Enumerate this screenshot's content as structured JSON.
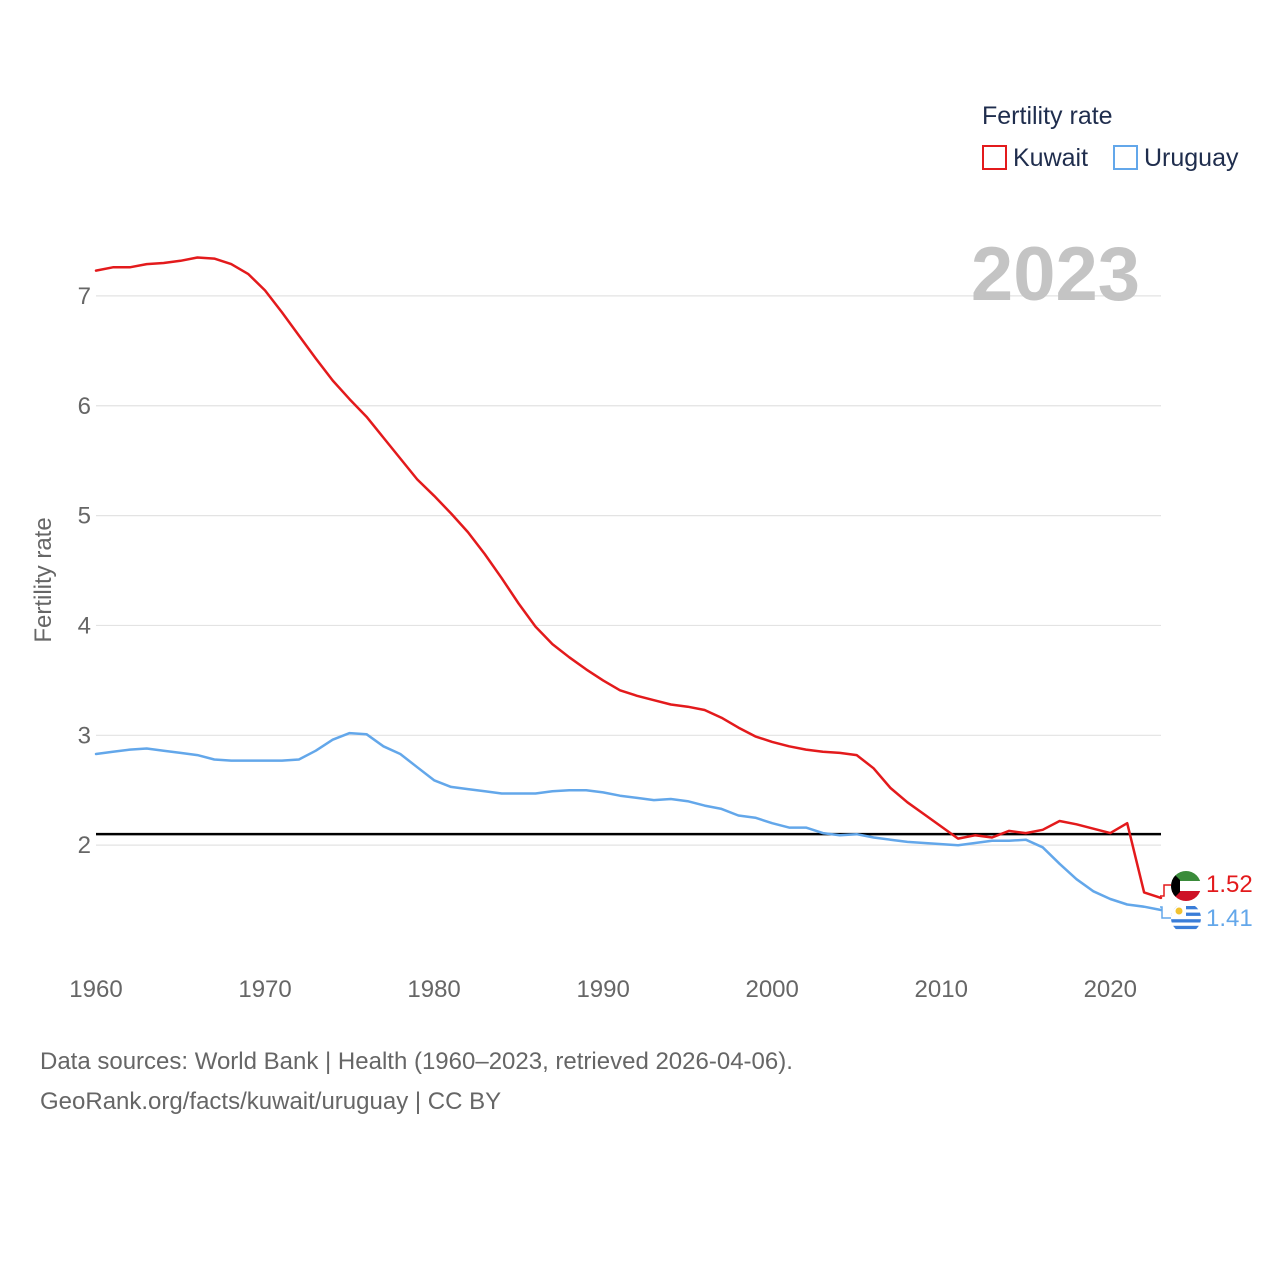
{
  "chart_data": {
    "type": "line",
    "title": "",
    "legend_title": "Fertility rate",
    "ylabel": "Fertility rate",
    "xlabel": "",
    "xlim": [
      1960,
      2023
    ],
    "ylim": [
      1.0,
      7.6
    ],
    "xticks": [
      1960,
      1970,
      1980,
      1990,
      2000,
      2010,
      2020
    ],
    "yticks": [
      2,
      3,
      4,
      5,
      6,
      7
    ],
    "grid": true,
    "legend_position": "top-right",
    "year_label": "2023",
    "reference_line": {
      "y": 2.1,
      "color": "#000000"
    },
    "series": [
      {
        "name": "Kuwait",
        "color": "#e31a1c",
        "end_label": "1.52",
        "x": [
          1960,
          1961,
          1962,
          1963,
          1964,
          1965,
          1966,
          1967,
          1968,
          1969,
          1970,
          1971,
          1972,
          1973,
          1974,
          1975,
          1976,
          1977,
          1978,
          1979,
          1980,
          1981,
          1982,
          1983,
          1984,
          1985,
          1986,
          1987,
          1988,
          1989,
          1990,
          1991,
          1992,
          1993,
          1994,
          1995,
          1996,
          1997,
          1998,
          1999,
          2000,
          2001,
          2002,
          2003,
          2004,
          2005,
          2006,
          2007,
          2008,
          2009,
          2010,
          2011,
          2012,
          2013,
          2014,
          2015,
          2016,
          2017,
          2018,
          2019,
          2020,
          2021,
          2022,
          2023
        ],
        "values": [
          7.23,
          7.26,
          7.26,
          7.29,
          7.3,
          7.32,
          7.35,
          7.34,
          7.29,
          7.2,
          7.05,
          6.85,
          6.64,
          6.43,
          6.23,
          6.06,
          5.9,
          5.71,
          5.52,
          5.33,
          5.18,
          5.02,
          4.85,
          4.65,
          4.43,
          4.2,
          3.99,
          3.83,
          3.71,
          3.6,
          3.5,
          3.41,
          3.36,
          3.32,
          3.28,
          3.26,
          3.23,
          3.16,
          3.07,
          2.99,
          2.94,
          2.9,
          2.87,
          2.85,
          2.84,
          2.82,
          2.7,
          2.52,
          2.39,
          2.28,
          2.17,
          2.06,
          2.09,
          2.07,
          2.13,
          2.11,
          2.14,
          2.22,
          2.19,
          2.15,
          2.11,
          2.2,
          1.57,
          1.52
        ]
      },
      {
        "name": "Uruguay",
        "color": "#63a7ea",
        "end_label": "1.41",
        "x": [
          1960,
          1961,
          1962,
          1963,
          1964,
          1965,
          1966,
          1967,
          1968,
          1969,
          1970,
          1971,
          1972,
          1973,
          1974,
          1975,
          1976,
          1977,
          1978,
          1979,
          1980,
          1981,
          1982,
          1983,
          1984,
          1985,
          1986,
          1987,
          1988,
          1989,
          1990,
          1991,
          1992,
          1993,
          1994,
          1995,
          1996,
          1997,
          1998,
          1999,
          2000,
          2001,
          2002,
          2003,
          2004,
          2005,
          2006,
          2007,
          2008,
          2009,
          2010,
          2011,
          2012,
          2013,
          2014,
          2015,
          2016,
          2017,
          2018,
          2019,
          2020,
          2021,
          2022,
          2023
        ],
        "values": [
          2.83,
          2.85,
          2.87,
          2.88,
          2.86,
          2.84,
          2.82,
          2.78,
          2.77,
          2.77,
          2.77,
          2.77,
          2.78,
          2.86,
          2.96,
          3.02,
          3.01,
          2.9,
          2.83,
          2.71,
          2.59,
          2.53,
          2.51,
          2.49,
          2.47,
          2.47,
          2.47,
          2.49,
          2.5,
          2.5,
          2.48,
          2.45,
          2.43,
          2.41,
          2.42,
          2.4,
          2.36,
          2.33,
          2.27,
          2.25,
          2.2,
          2.16,
          2.16,
          2.11,
          2.09,
          2.1,
          2.07,
          2.05,
          2.03,
          2.02,
          2.01,
          2.0,
          2.02,
          2.04,
          2.04,
          2.05,
          1.98,
          1.83,
          1.69,
          1.58,
          1.51,
          1.46,
          1.44,
          1.41
        ]
      }
    ]
  },
  "footer": {
    "line1": "Data sources: World Bank | Health (1960–2023, retrieved 2026-04-06).",
    "line2": "GeoRank.org/facts/kuwait/uruguay | CC BY"
  },
  "flags": {
    "kuwait": "kuwait-flag-icon",
    "uruguay": "uruguay-flag-icon"
  }
}
